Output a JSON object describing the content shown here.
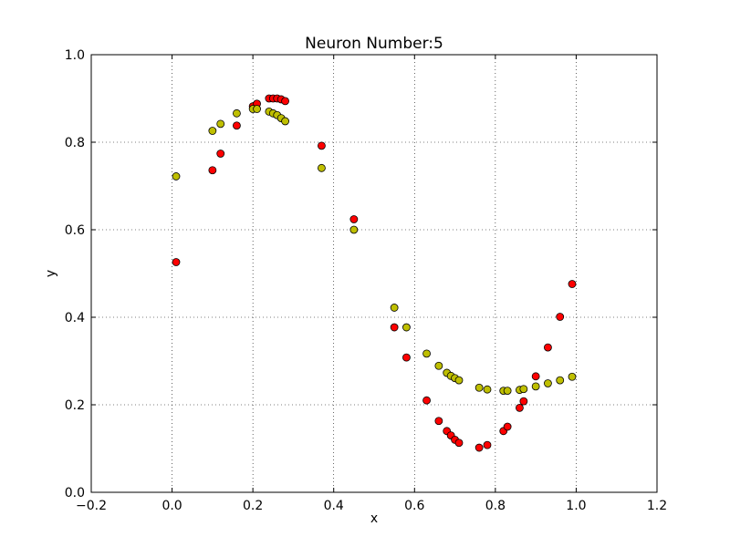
{
  "chart_data": {
    "type": "scatter",
    "title": "Neuron Number:5",
    "xlabel": "x",
    "ylabel": "y",
    "xlim": [
      -0.2,
      1.2
    ],
    "ylim": [
      0.0,
      1.0
    ],
    "xticks": [
      -0.2,
      0.0,
      0.2,
      0.4,
      0.6,
      0.8,
      1.0,
      1.2
    ],
    "yticks": [
      0.0,
      0.2,
      0.4,
      0.6,
      0.8,
      1.0
    ],
    "xtick_labels": [
      "−0.2",
      "0.0",
      "0.2",
      "0.4",
      "0.6",
      "0.8",
      "1.0",
      "1.2"
    ],
    "ytick_labels": [
      "0.0",
      "0.2",
      "0.4",
      "0.6",
      "0.8",
      "1.0"
    ],
    "grid": true,
    "series": [
      {
        "color": "#ff0000",
        "points": [
          [
            0.01,
            0.526
          ],
          [
            0.1,
            0.736
          ],
          [
            0.12,
            0.774
          ],
          [
            0.16,
            0.838
          ],
          [
            0.2,
            0.882
          ],
          [
            0.21,
            0.888
          ],
          [
            0.24,
            0.9
          ],
          [
            0.25,
            0.9
          ],
          [
            0.26,
            0.9
          ],
          [
            0.27,
            0.898
          ],
          [
            0.28,
            0.894
          ],
          [
            0.37,
            0.792
          ],
          [
            0.45,
            0.624
          ],
          [
            0.55,
            0.377
          ],
          [
            0.58,
            0.308
          ],
          [
            0.63,
            0.21
          ],
          [
            0.66,
            0.163
          ],
          [
            0.68,
            0.14
          ],
          [
            0.69,
            0.13
          ],
          [
            0.7,
            0.12
          ],
          [
            0.71,
            0.113
          ],
          [
            0.76,
            0.102
          ],
          [
            0.78,
            0.108
          ],
          [
            0.82,
            0.14
          ],
          [
            0.83,
            0.15
          ],
          [
            0.86,
            0.193
          ],
          [
            0.87,
            0.208
          ],
          [
            0.9,
            0.265
          ],
          [
            0.93,
            0.331
          ],
          [
            0.96,
            0.401
          ],
          [
            0.99,
            0.476
          ]
        ]
      },
      {
        "color": "#bfbf00",
        "points": [
          [
            0.01,
            0.722
          ],
          [
            0.1,
            0.826
          ],
          [
            0.12,
            0.842
          ],
          [
            0.16,
            0.866
          ],
          [
            0.2,
            0.876
          ],
          [
            0.21,
            0.876
          ],
          [
            0.24,
            0.87
          ],
          [
            0.25,
            0.866
          ],
          [
            0.26,
            0.862
          ],
          [
            0.27,
            0.855
          ],
          [
            0.28,
            0.848
          ],
          [
            0.37,
            0.741
          ],
          [
            0.45,
            0.6
          ],
          [
            0.55,
            0.422
          ],
          [
            0.58,
            0.377
          ],
          [
            0.63,
            0.317
          ],
          [
            0.66,
            0.289
          ],
          [
            0.68,
            0.273
          ],
          [
            0.69,
            0.266
          ],
          [
            0.7,
            0.261
          ],
          [
            0.71,
            0.256
          ],
          [
            0.76,
            0.239
          ],
          [
            0.78,
            0.235
          ],
          [
            0.82,
            0.232
          ],
          [
            0.83,
            0.232
          ],
          [
            0.86,
            0.234
          ],
          [
            0.87,
            0.236
          ],
          [
            0.9,
            0.242
          ],
          [
            0.93,
            0.249
          ],
          [
            0.96,
            0.256
          ],
          [
            0.99,
            0.264
          ]
        ]
      }
    ]
  }
}
